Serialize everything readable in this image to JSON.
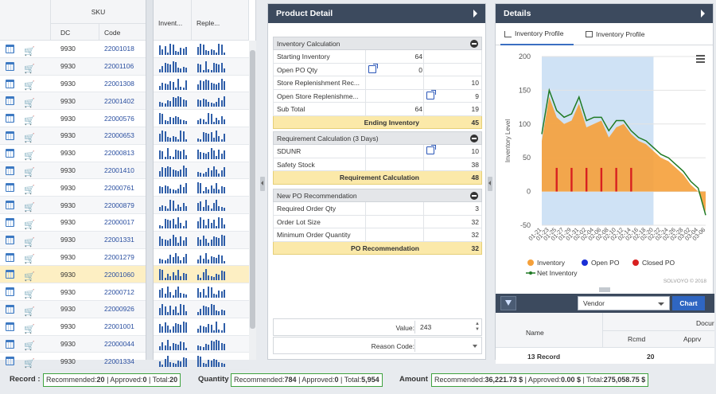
{
  "grid": {
    "sku_header": "SKU",
    "col_dc": "DC",
    "col_code": "Code",
    "col_inventory": "Invent...",
    "col_replenishment": "Reple...",
    "rows": [
      {
        "dc": "9930",
        "code": "22001018"
      },
      {
        "dc": "9930",
        "code": "22001106"
      },
      {
        "dc": "9930",
        "code": "22001308"
      },
      {
        "dc": "9930",
        "code": "22001402"
      },
      {
        "dc": "9930",
        "code": "22000576"
      },
      {
        "dc": "9930",
        "code": "22000653"
      },
      {
        "dc": "9930",
        "code": "22000813"
      },
      {
        "dc": "9930",
        "code": "22001410"
      },
      {
        "dc": "9930",
        "code": "22000761"
      },
      {
        "dc": "9930",
        "code": "22000879"
      },
      {
        "dc": "9930",
        "code": "22000017"
      },
      {
        "dc": "9930",
        "code": "22001331"
      },
      {
        "dc": "9930",
        "code": "22001279"
      },
      {
        "dc": "9930",
        "code": "22001060"
      },
      {
        "dc": "9930",
        "code": "22000712"
      },
      {
        "dc": "9930",
        "code": "22000926"
      },
      {
        "dc": "9930",
        "code": "22001001"
      },
      {
        "dc": "9930",
        "code": "22000044"
      },
      {
        "dc": "9930",
        "code": "22001334"
      }
    ],
    "selected_row": 13
  },
  "product_detail": {
    "title": "Product Detail",
    "inventory_calc": {
      "title": "Inventory Calculation",
      "rows": [
        {
          "label": "Starting Inventory",
          "v1": "64",
          "v2": ""
        },
        {
          "label": "Open PO Qty",
          "v1": "0",
          "v2": ""
        },
        {
          "label": "Store Replenishment Rec...",
          "v1": "",
          "v2": "10"
        },
        {
          "label": "Open Store Replenishme...",
          "v1": "",
          "v2": "9"
        },
        {
          "label": "Sub Total",
          "v1": "64",
          "v2": "19"
        }
      ],
      "total_label": "Ending Inventory",
      "total_value": "45"
    },
    "requirement_calc": {
      "title": "Requirement Calculation (3 Days)",
      "rows": [
        {
          "label": "SDUNR",
          "v1": "",
          "v2": "10"
        },
        {
          "label": "Safety Stock",
          "v1": "",
          "v2": "38"
        }
      ],
      "total_label": "Requirement Calculation",
      "total_value": "48"
    },
    "po_recommendation": {
      "title": "New PO Recommendation",
      "rows": [
        {
          "label": "Required Order Qty",
          "v1": "",
          "v2": "3"
        },
        {
          "label": "Order Lot Size",
          "v1": "",
          "v2": "32"
        },
        {
          "label": "Minimum Order Quantity",
          "v1": "",
          "v2": "32"
        }
      ],
      "total_label": "PO Recommendation",
      "total_value": "32"
    },
    "value_label": "Value:",
    "value": "243",
    "reason_label": "Reason Code:"
  },
  "details": {
    "title": "Details",
    "tab1": "Inventory Profile",
    "tab2": "Inventory Profile",
    "credits": "SOLVOYO © 2018",
    "vendor_select": "Vendor",
    "chart_button": "Chart",
    "table": {
      "col_name": "Name",
      "col_docu": "Docur",
      "col_rcmd": "Rcmd",
      "col_apprv": "Apprv",
      "record_label": "13 Record",
      "record_rcmd": "20"
    }
  },
  "chart_data": {
    "type": "area",
    "ylabel": "Inventory Level",
    "ylim": [
      -50,
      200
    ],
    "yticks": [
      -50,
      0,
      50,
      100,
      150,
      200
    ],
    "x_tick_labels": [
      "01-21",
      "01-23",
      "01-25",
      "01-27",
      "01-29",
      "01-31",
      "02-02",
      "02-04",
      "02-06",
      "02-08",
      "02-10",
      "02-12",
      "02-14",
      "02-16",
      "02-18",
      "02-20",
      "02-22",
      "02-24",
      "02-26",
      "02-28",
      "03-02",
      "03-04",
      "03-06"
    ],
    "highlight_band": [
      "01-21",
      "02-20"
    ],
    "series": [
      {
        "name": "Inventory",
        "color": "#f5a03a",
        "values": [
          75,
          140,
          110,
          100,
          105,
          130,
          95,
          100,
          105,
          80,
          95,
          100,
          85,
          75,
          70,
          60,
          50,
          45,
          35,
          25,
          10,
          0,
          -30
        ]
      },
      {
        "name": "Open PO",
        "color": "#1a2fd6",
        "values": []
      },
      {
        "name": "Closed PO",
        "color": "#d82020",
        "values": [
          0,
          0,
          35,
          0,
          35,
          0,
          35,
          0,
          35,
          0,
          35,
          0,
          35,
          0,
          0,
          0,
          0,
          0,
          0,
          0,
          0,
          0,
          0
        ]
      },
      {
        "name": "Net Inventory",
        "color": "#1f7a24",
        "values": [
          85,
          150,
          120,
          110,
          115,
          140,
          105,
          110,
          110,
          90,
          105,
          105,
          90,
          80,
          75,
          65,
          55,
          50,
          40,
          30,
          15,
          5,
          -35
        ]
      }
    ],
    "legend": "bottom"
  },
  "status": {
    "record_label": "Record :",
    "record_text": [
      "Recommended:",
      "20",
      " | Approved:",
      "0",
      " | Total:",
      "20"
    ],
    "quantity_label": "Quantity",
    "quantity_text": [
      "Recommended:",
      "784",
      " | Approved:",
      "0",
      " | Total:",
      "5,954"
    ],
    "amount_label": "Amount",
    "amount_text": [
      "Recommended:",
      "36,221.73 $",
      " | Approved:",
      "0.00 $",
      " | Total:",
      "275,058.75 $"
    ]
  }
}
